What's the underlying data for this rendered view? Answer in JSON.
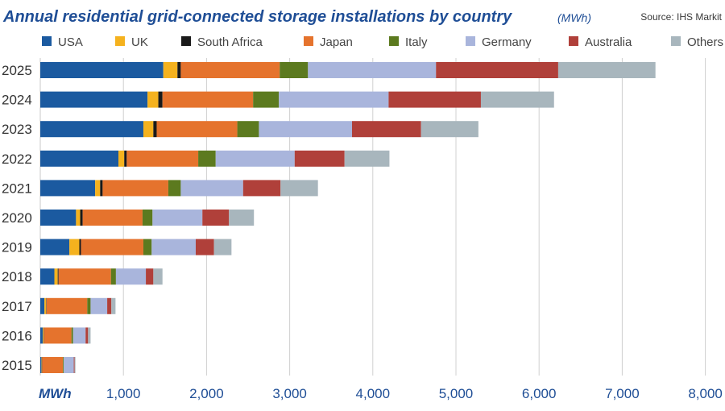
{
  "chart_data": {
    "type": "bar",
    "orientation": "horizontal",
    "stacked": true,
    "title": "Annual residential grid-connected storage installations by country",
    "unit_label": "(MWh)",
    "source": "Source: IHS Markit",
    "xunit": "MWh",
    "xlim": [
      0,
      8000
    ],
    "xticks": [
      "1,000",
      "2,000",
      "3,000",
      "4,000",
      "5,000",
      "6,000",
      "7,000",
      "8,000"
    ],
    "xtick_values": [
      1000,
      2000,
      3000,
      4000,
      5000,
      6000,
      7000,
      8000
    ],
    "grid": true,
    "legend_position": "top",
    "categories": [
      "2025",
      "2024",
      "2023",
      "2022",
      "2021",
      "2020",
      "2019",
      "2018",
      "2017",
      "2016",
      "2015"
    ],
    "series": [
      {
        "name": "USA",
        "color": "#1b5aa0",
        "values": [
          1480,
          1290,
          1240,
          940,
          660,
          430,
          350,
          170,
          50,
          30,
          15
        ]
      },
      {
        "name": "UK",
        "color": "#f5b21e",
        "values": [
          170,
          130,
          120,
          70,
          60,
          50,
          120,
          40,
          20,
          10,
          5
        ]
      },
      {
        "name": "South Africa",
        "color": "#1a1a1a",
        "values": [
          40,
          50,
          40,
          30,
          30,
          30,
          20,
          10,
          5,
          5,
          3
        ]
      },
      {
        "name": "Japan",
        "color": "#e5732d",
        "values": [
          1190,
          1090,
          970,
          860,
          790,
          720,
          750,
          630,
          490,
          330,
          250
        ]
      },
      {
        "name": "Italy",
        "color": "#5c7a1f",
        "values": [
          340,
          310,
          260,
          210,
          150,
          120,
          100,
          60,
          40,
          20,
          10
        ]
      },
      {
        "name": "Germany",
        "color": "#a9b5dc",
        "values": [
          1540,
          1320,
          1120,
          950,
          750,
          600,
          530,
          360,
          200,
          150,
          120
        ]
      },
      {
        "name": "Australia",
        "color": "#b0403a",
        "values": [
          1470,
          1110,
          830,
          600,
          450,
          320,
          220,
          90,
          50,
          30,
          10
        ]
      },
      {
        "name": "Others",
        "color": "#a8b6bd",
        "values": [
          1170,
          880,
          690,
          540,
          450,
          300,
          210,
          110,
          50,
          30,
          10
        ]
      }
    ]
  }
}
